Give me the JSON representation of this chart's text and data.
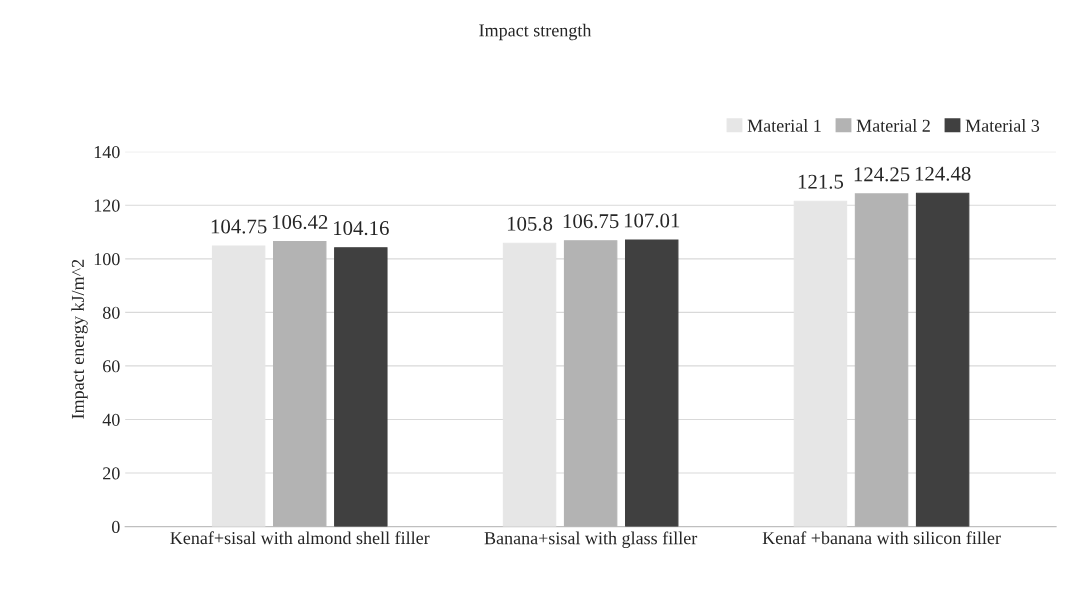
{
  "chart_data": {
    "type": "bar",
    "title": "Impact strength",
    "ylabel": "Impact energy kJ/m^2",
    "categories": [
      "Kenaf+sisal with almond shell filler",
      "Banana+sisal with glass filler",
      "Kenaf +banana with silicon filler"
    ],
    "series": [
      {
        "name": "Material 1",
        "color": "#e6e6e6",
        "values": [
          104.75,
          105.8,
          121.5
        ]
      },
      {
        "name": "Material 2",
        "color": "#b3b3b3",
        "values": [
          106.42,
          106.75,
          124.25
        ]
      },
      {
        "name": "Material 3",
        "color": "#404040",
        "values": [
          104.16,
          107.01,
          124.48
        ]
      }
    ],
    "ylim": [
      0,
      140
    ],
    "yticks": [
      0,
      20,
      40,
      60,
      80,
      100,
      120,
      140
    ],
    "grid": "y",
    "legend": "top right",
    "data_labels": true
  }
}
